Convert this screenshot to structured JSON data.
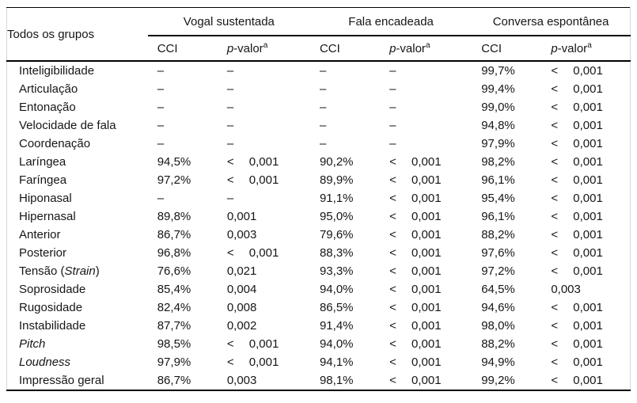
{
  "page": {
    "background": "#ffffff",
    "text_color": "#161616",
    "rule_color": "#000000",
    "frame_color": "#d9d9d9"
  },
  "table": {
    "corner_label": "Todos os grupos",
    "groups": [
      {
        "label": "Vogal sustentada"
      },
      {
        "label": "Fala encadeada"
      },
      {
        "label": "Conversa espontânea"
      }
    ],
    "subheaders": {
      "cci": "CCI",
      "p_italic": "p",
      "p_rest": "-valor",
      "p_sup": "a"
    },
    "rows": [
      {
        "label_prefix": "Inteligibilidade",
        "label_italic": "",
        "label_suffix": "",
        "cells": [
          "–",
          "–",
          "–",
          "–",
          "99,7%",
          "< 0,001"
        ]
      },
      {
        "label_prefix": "Articulação",
        "label_italic": "",
        "label_suffix": "",
        "cells": [
          "–",
          "–",
          "–",
          "–",
          "99,4%",
          "< 0,001"
        ]
      },
      {
        "label_prefix": "Entonação",
        "label_italic": "",
        "label_suffix": "",
        "cells": [
          "–",
          "–",
          "–",
          "–",
          "99,0%",
          "< 0,001"
        ]
      },
      {
        "label_prefix": "Velocidade de fala",
        "label_italic": "",
        "label_suffix": "",
        "cells": [
          "–",
          "–",
          "–",
          "–",
          "94,8%",
          "< 0,001"
        ]
      },
      {
        "label_prefix": "Coordenação",
        "label_italic": "",
        "label_suffix": "",
        "cells": [
          "–",
          "–",
          "–",
          "–",
          "97,9%",
          "< 0,001"
        ]
      },
      {
        "label_prefix": "Laríngea",
        "label_italic": "",
        "label_suffix": "",
        "cells": [
          "94,5%",
          "< 0,001",
          "90,2%",
          "< 0,001",
          "98,2%",
          "< 0,001"
        ]
      },
      {
        "label_prefix": "Faríngea",
        "label_italic": "",
        "label_suffix": "",
        "cells": [
          "97,2%",
          "< 0,001",
          "89,9%",
          "< 0,001",
          "96,1%",
          "< 0,001"
        ]
      },
      {
        "label_prefix": "Hiponasal",
        "label_italic": "",
        "label_suffix": "",
        "cells": [
          "–",
          "–",
          "91,1%",
          "< 0,001",
          "95,4%",
          "< 0,001"
        ]
      },
      {
        "label_prefix": "Hipernasal",
        "label_italic": "",
        "label_suffix": "",
        "cells": [
          "89,8%",
          "0,001",
          "95,0%",
          "< 0,001",
          "96,1%",
          "< 0,001"
        ]
      },
      {
        "label_prefix": "Anterior",
        "label_italic": "",
        "label_suffix": "",
        "cells": [
          "86,7%",
          "0,003",
          "79,6%",
          "< 0,001",
          "88,2%",
          "< 0,001"
        ]
      },
      {
        "label_prefix": "Posterior",
        "label_italic": "",
        "label_suffix": "",
        "cells": [
          "96,8%",
          "< 0,001",
          "88,3%",
          "< 0,001",
          "97,6%",
          "< 0,001"
        ]
      },
      {
        "label_prefix": "Tensão (",
        "label_italic": "Strain",
        "label_suffix": ")",
        "cells": [
          "76,6%",
          "0,021",
          "93,3%",
          "< 0,001",
          "97,2%",
          "< 0,001"
        ]
      },
      {
        "label_prefix": "Soprosidade",
        "label_italic": "",
        "label_suffix": "",
        "cells": [
          "85,4%",
          "0,004",
          "94,0%",
          "< 0,001",
          "64,5%",
          "0,003"
        ]
      },
      {
        "label_prefix": "Rugosidade",
        "label_italic": "",
        "label_suffix": "",
        "cells": [
          "82,4%",
          "0,008",
          "86,5%",
          "< 0,001",
          "94,6%",
          "< 0,001"
        ]
      },
      {
        "label_prefix": "Instabilidade",
        "label_italic": "",
        "label_suffix": "",
        "cells": [
          "87,7%",
          "0,002",
          "91,4%",
          "< 0,001",
          "98,0%",
          "< 0,001"
        ]
      },
      {
        "label_prefix": "",
        "label_italic": "Pitch",
        "label_suffix": "",
        "cells": [
          "98,5%",
          "< 0,001",
          "94,0%",
          "< 0,001",
          "88,2%",
          "< 0,001"
        ]
      },
      {
        "label_prefix": "",
        "label_italic": "Loudness",
        "label_suffix": "",
        "cells": [
          "97,9%",
          "< 0,001",
          "94,1%",
          "< 0,001",
          "94,9%",
          "< 0,001"
        ]
      },
      {
        "label_prefix": "Impressão geral",
        "label_italic": "",
        "label_suffix": "",
        "cells": [
          "86,7%",
          "0,003",
          "98,1%",
          "< 0,001",
          "99,2%",
          "< 0,001"
        ]
      }
    ]
  }
}
